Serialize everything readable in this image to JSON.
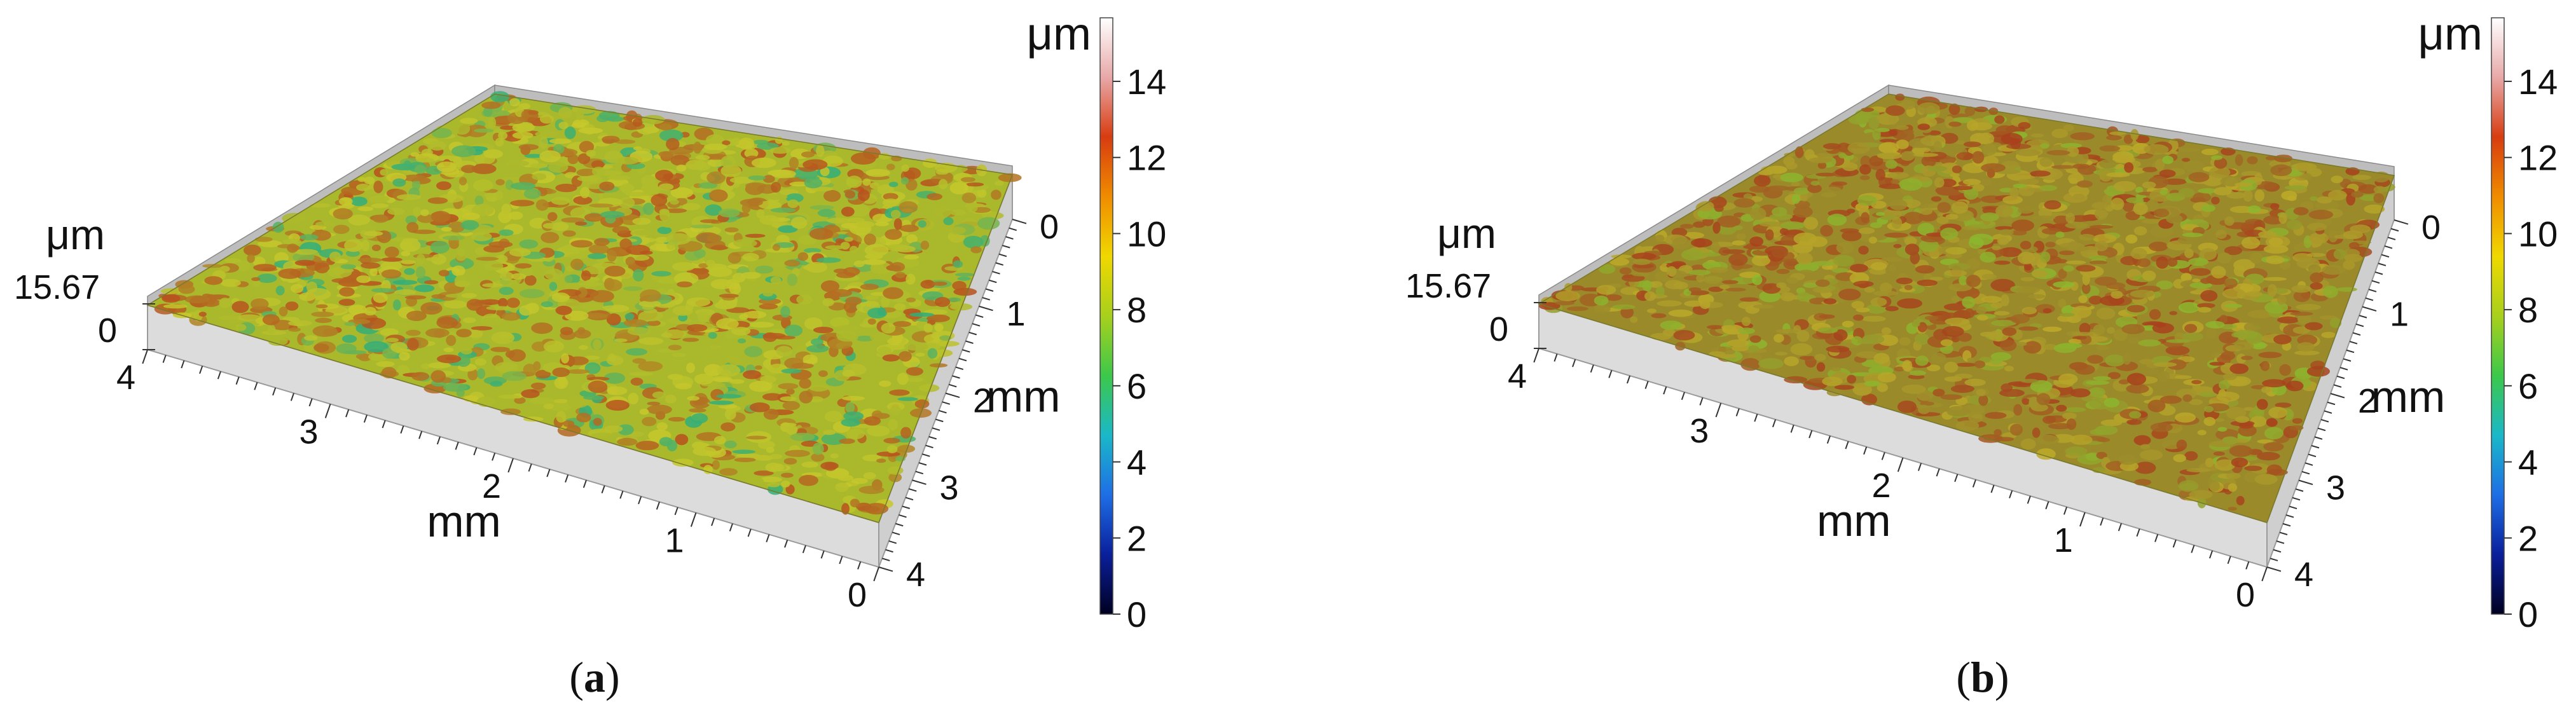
{
  "chart_data": [
    {
      "type": "surface3d",
      "panel_label": "a",
      "caption_open": "(",
      "caption_close": ")",
      "height_axis": {
        "unit": "μm",
        "max_label": "15.67",
        "min_label": "0"
      },
      "x_axis": {
        "label": "mm",
        "ticks": [
          "4",
          "3",
          "2",
          "1",
          "0"
        ]
      },
      "y_axis": {
        "label": "mm",
        "ticks": [
          "0",
          "1",
          "2",
          "3",
          "4"
        ]
      },
      "colorbar": {
        "unit": "μm",
        "range": [
          0,
          15.67
        ],
        "ticks": [
          "0",
          "2",
          "4",
          "6",
          "8",
          "10",
          "12",
          "14"
        ],
        "colors": [
          "#000020",
          "#0a1f9c",
          "#1e6ee6",
          "#1ab8c8",
          "#3cc84a",
          "#a8d01c",
          "#f0d800",
          "#f08c00",
          "#d83c10",
          "#e8a8a8",
          "#ffffff"
        ]
      },
      "surface_colors": {
        "base": "#aab82c",
        "peak": "#b8501e",
        "valley": "#2fae7c"
      },
      "seed": 11
    },
    {
      "type": "surface3d",
      "panel_label": "b",
      "caption_open": "(",
      "caption_close": ")",
      "height_axis": {
        "unit": "μm",
        "max_label": "15.67",
        "min_label": "0"
      },
      "x_axis": {
        "label": "mm",
        "ticks": [
          "4",
          "3",
          "2",
          "1",
          "0"
        ]
      },
      "y_axis": {
        "label": "mm",
        "ticks": [
          "0",
          "1",
          "2",
          "3",
          "4"
        ]
      },
      "colorbar": {
        "unit": "μm",
        "range": [
          0,
          15.67
        ],
        "ticks": [
          "0",
          "2",
          "4",
          "6",
          "8",
          "10",
          "12",
          "14"
        ],
        "colors": [
          "#000020",
          "#0a1f9c",
          "#1e6ee6",
          "#1ab8c8",
          "#3cc84a",
          "#a8d01c",
          "#f0d800",
          "#f08c00",
          "#d83c10",
          "#e8a8a8",
          "#ffffff"
        ]
      },
      "surface_colors": {
        "base": "#9a8a2a",
        "peak": "#a8401c",
        "valley": "#8cb82e"
      },
      "seed": 29
    }
  ]
}
